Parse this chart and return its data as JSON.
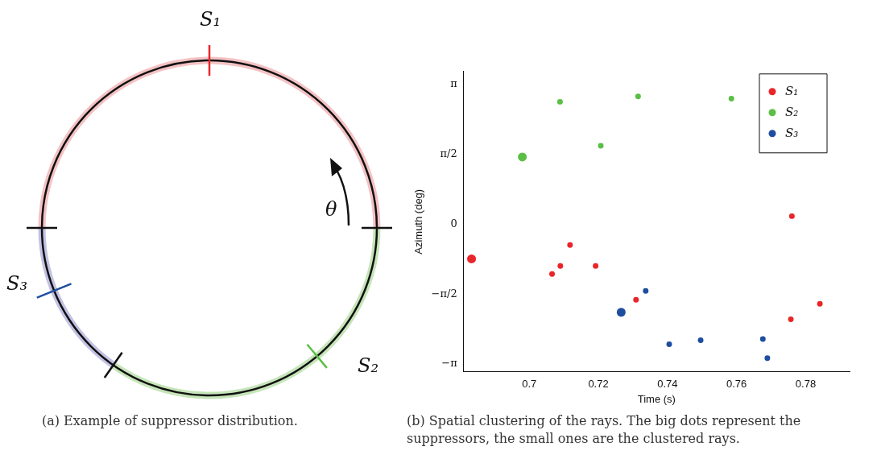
{
  "chart_data": [
    {
      "type": "other",
      "annotations": [
        "S₁",
        "S₂",
        "S₃",
        "θ",
        "(a) Example of suppressor distribution."
      ]
    },
    {
      "type": "bubble",
      "xlabel": "Time (s)",
      "ylabel": "Azimuth (deg)",
      "xlim": [
        0.681,
        0.7927
      ],
      "xticks": [
        0.7,
        0.72,
        0.74,
        0.76,
        0.78
      ],
      "ylim": [
        -3.32,
        3.43
      ],
      "yticks": [
        {
          "value": -3.1416,
          "label": "−π"
        },
        {
          "value": -1.5708,
          "label": "−π/2"
        },
        0,
        {
          "value": 1.5708,
          "label": "π/2"
        },
        {
          "value": 3.1416,
          "label": "π"
        }
      ],
      "series": [
        {
          "name": "S₁",
          "color": "#e8262a",
          "x": [
            0.6833,
            0.7066,
            0.709,
            0.7118,
            0.7192,
            0.7309,
            0.776,
            0.7757,
            0.7841
          ],
          "values": [
            -0.78,
            -1.12,
            -0.94,
            -0.47,
            -0.94,
            -1.7,
            0.18,
            -2.14,
            -1.79
          ],
          "sizes": [
            1,
            0.4,
            0.4,
            0.4,
            0.4,
            0.4,
            0.4,
            0.4,
            0.4
          ]
        },
        {
          "name": "S₂",
          "color": "#5cbf45",
          "x": [
            0.698,
            0.7089,
            0.7207,
            0.7315,
            0.7585
          ],
          "values": [
            1.51,
            2.75,
            1.76,
            2.87,
            2.82
          ],
          "sizes": [
            1,
            0.4,
            0.4,
            0.4,
            0.4
          ]
        },
        {
          "name": "S₃",
          "color": "#1f4ea0",
          "x": [
            0.7266,
            0.7337,
            0.7405,
            0.7496,
            0.7676,
            0.7689
          ],
          "values": [
            -1.98,
            -1.5,
            -2.7,
            -2.61,
            -2.58,
            -3.01
          ],
          "sizes": [
            1,
            0.4,
            0.4,
            0.4,
            0.4,
            0.4
          ]
        }
      ],
      "legend": "top right",
      "grid": false,
      "annotations": [
        "(b) Spatial clustering of the rays. The big dots represent the suppressors, the small ones are the clustered rays."
      ]
    }
  ]
}
